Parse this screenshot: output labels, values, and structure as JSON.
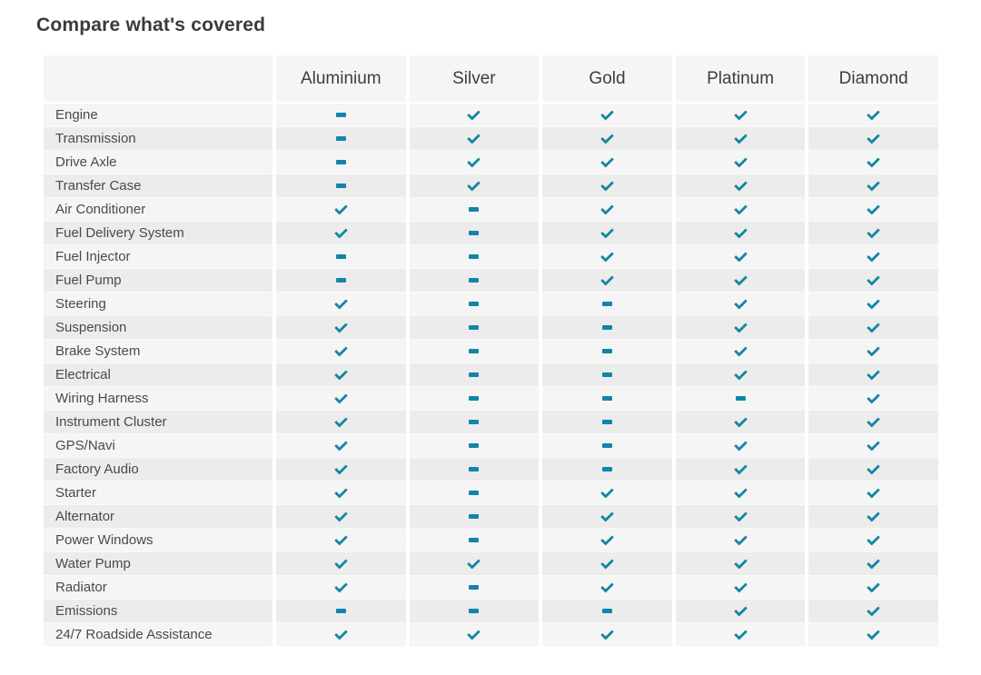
{
  "page": {
    "title": "Compare what's covered"
  },
  "colors": {
    "accent_teal": "#1385a6",
    "row_odd_bg": "#f5f5f5",
    "row_even_bg": "#ececec",
    "header_bg": "#f5f5f5",
    "title_text": "#3a3a3a"
  },
  "icons": {
    "check": {
      "name": "check-icon",
      "meaning": "covered",
      "color": "#1385a6"
    },
    "dash": {
      "name": "dash-icon",
      "meaning": "not covered",
      "color": "#1385a6"
    }
  },
  "table": {
    "columns": [
      "Aluminium",
      "Silver",
      "Gold",
      "Platinum",
      "Diamond"
    ],
    "rows": [
      {
        "label": "Engine",
        "values": [
          "dash",
          "check",
          "check",
          "check",
          "check"
        ]
      },
      {
        "label": "Transmission",
        "values": [
          "dash",
          "check",
          "check",
          "check",
          "check"
        ]
      },
      {
        "label": "Drive Axle",
        "values": [
          "dash",
          "check",
          "check",
          "check",
          "check"
        ]
      },
      {
        "label": "Transfer Case",
        "values": [
          "dash",
          "check",
          "check",
          "check",
          "check"
        ]
      },
      {
        "label": "Air Conditioner",
        "values": [
          "check",
          "dash",
          "check",
          "check",
          "check"
        ]
      },
      {
        "label": "Fuel Delivery System",
        "values": [
          "check",
          "dash",
          "check",
          "check",
          "check"
        ]
      },
      {
        "label": "Fuel Injector",
        "values": [
          "dash",
          "dash",
          "check",
          "check",
          "check"
        ]
      },
      {
        "label": "Fuel Pump",
        "values": [
          "dash",
          "dash",
          "check",
          "check",
          "check"
        ]
      },
      {
        "label": "Steering",
        "values": [
          "check",
          "dash",
          "dash",
          "check",
          "check"
        ]
      },
      {
        "label": "Suspension",
        "values": [
          "check",
          "dash",
          "dash",
          "check",
          "check"
        ]
      },
      {
        "label": "Brake System",
        "values": [
          "check",
          "dash",
          "dash",
          "check",
          "check"
        ]
      },
      {
        "label": "Electrical",
        "values": [
          "check",
          "dash",
          "dash",
          "check",
          "check"
        ]
      },
      {
        "label": "Wiring Harness",
        "values": [
          "check",
          "dash",
          "dash",
          "dash",
          "check"
        ]
      },
      {
        "label": "Instrument Cluster",
        "values": [
          "check",
          "dash",
          "dash",
          "check",
          "check"
        ]
      },
      {
        "label": "GPS/Navi",
        "values": [
          "check",
          "dash",
          "dash",
          "check",
          "check"
        ]
      },
      {
        "label": "Factory Audio",
        "values": [
          "check",
          "dash",
          "dash",
          "check",
          "check"
        ]
      },
      {
        "label": "Starter",
        "values": [
          "check",
          "dash",
          "check",
          "check",
          "check"
        ]
      },
      {
        "label": "Alternator",
        "values": [
          "check",
          "dash",
          "check",
          "check",
          "check"
        ]
      },
      {
        "label": "Power Windows",
        "values": [
          "check",
          "dash",
          "check",
          "check",
          "check"
        ]
      },
      {
        "label": "Water Pump",
        "values": [
          "check",
          "check",
          "check",
          "check",
          "check"
        ]
      },
      {
        "label": "Radiator",
        "values": [
          "check",
          "dash",
          "check",
          "check",
          "check"
        ]
      },
      {
        "label": "Emissions",
        "values": [
          "dash",
          "dash",
          "dash",
          "check",
          "check"
        ]
      },
      {
        "label": "24/7 Roadside Assistance",
        "values": [
          "check",
          "check",
          "check",
          "check",
          "check"
        ]
      }
    ]
  }
}
